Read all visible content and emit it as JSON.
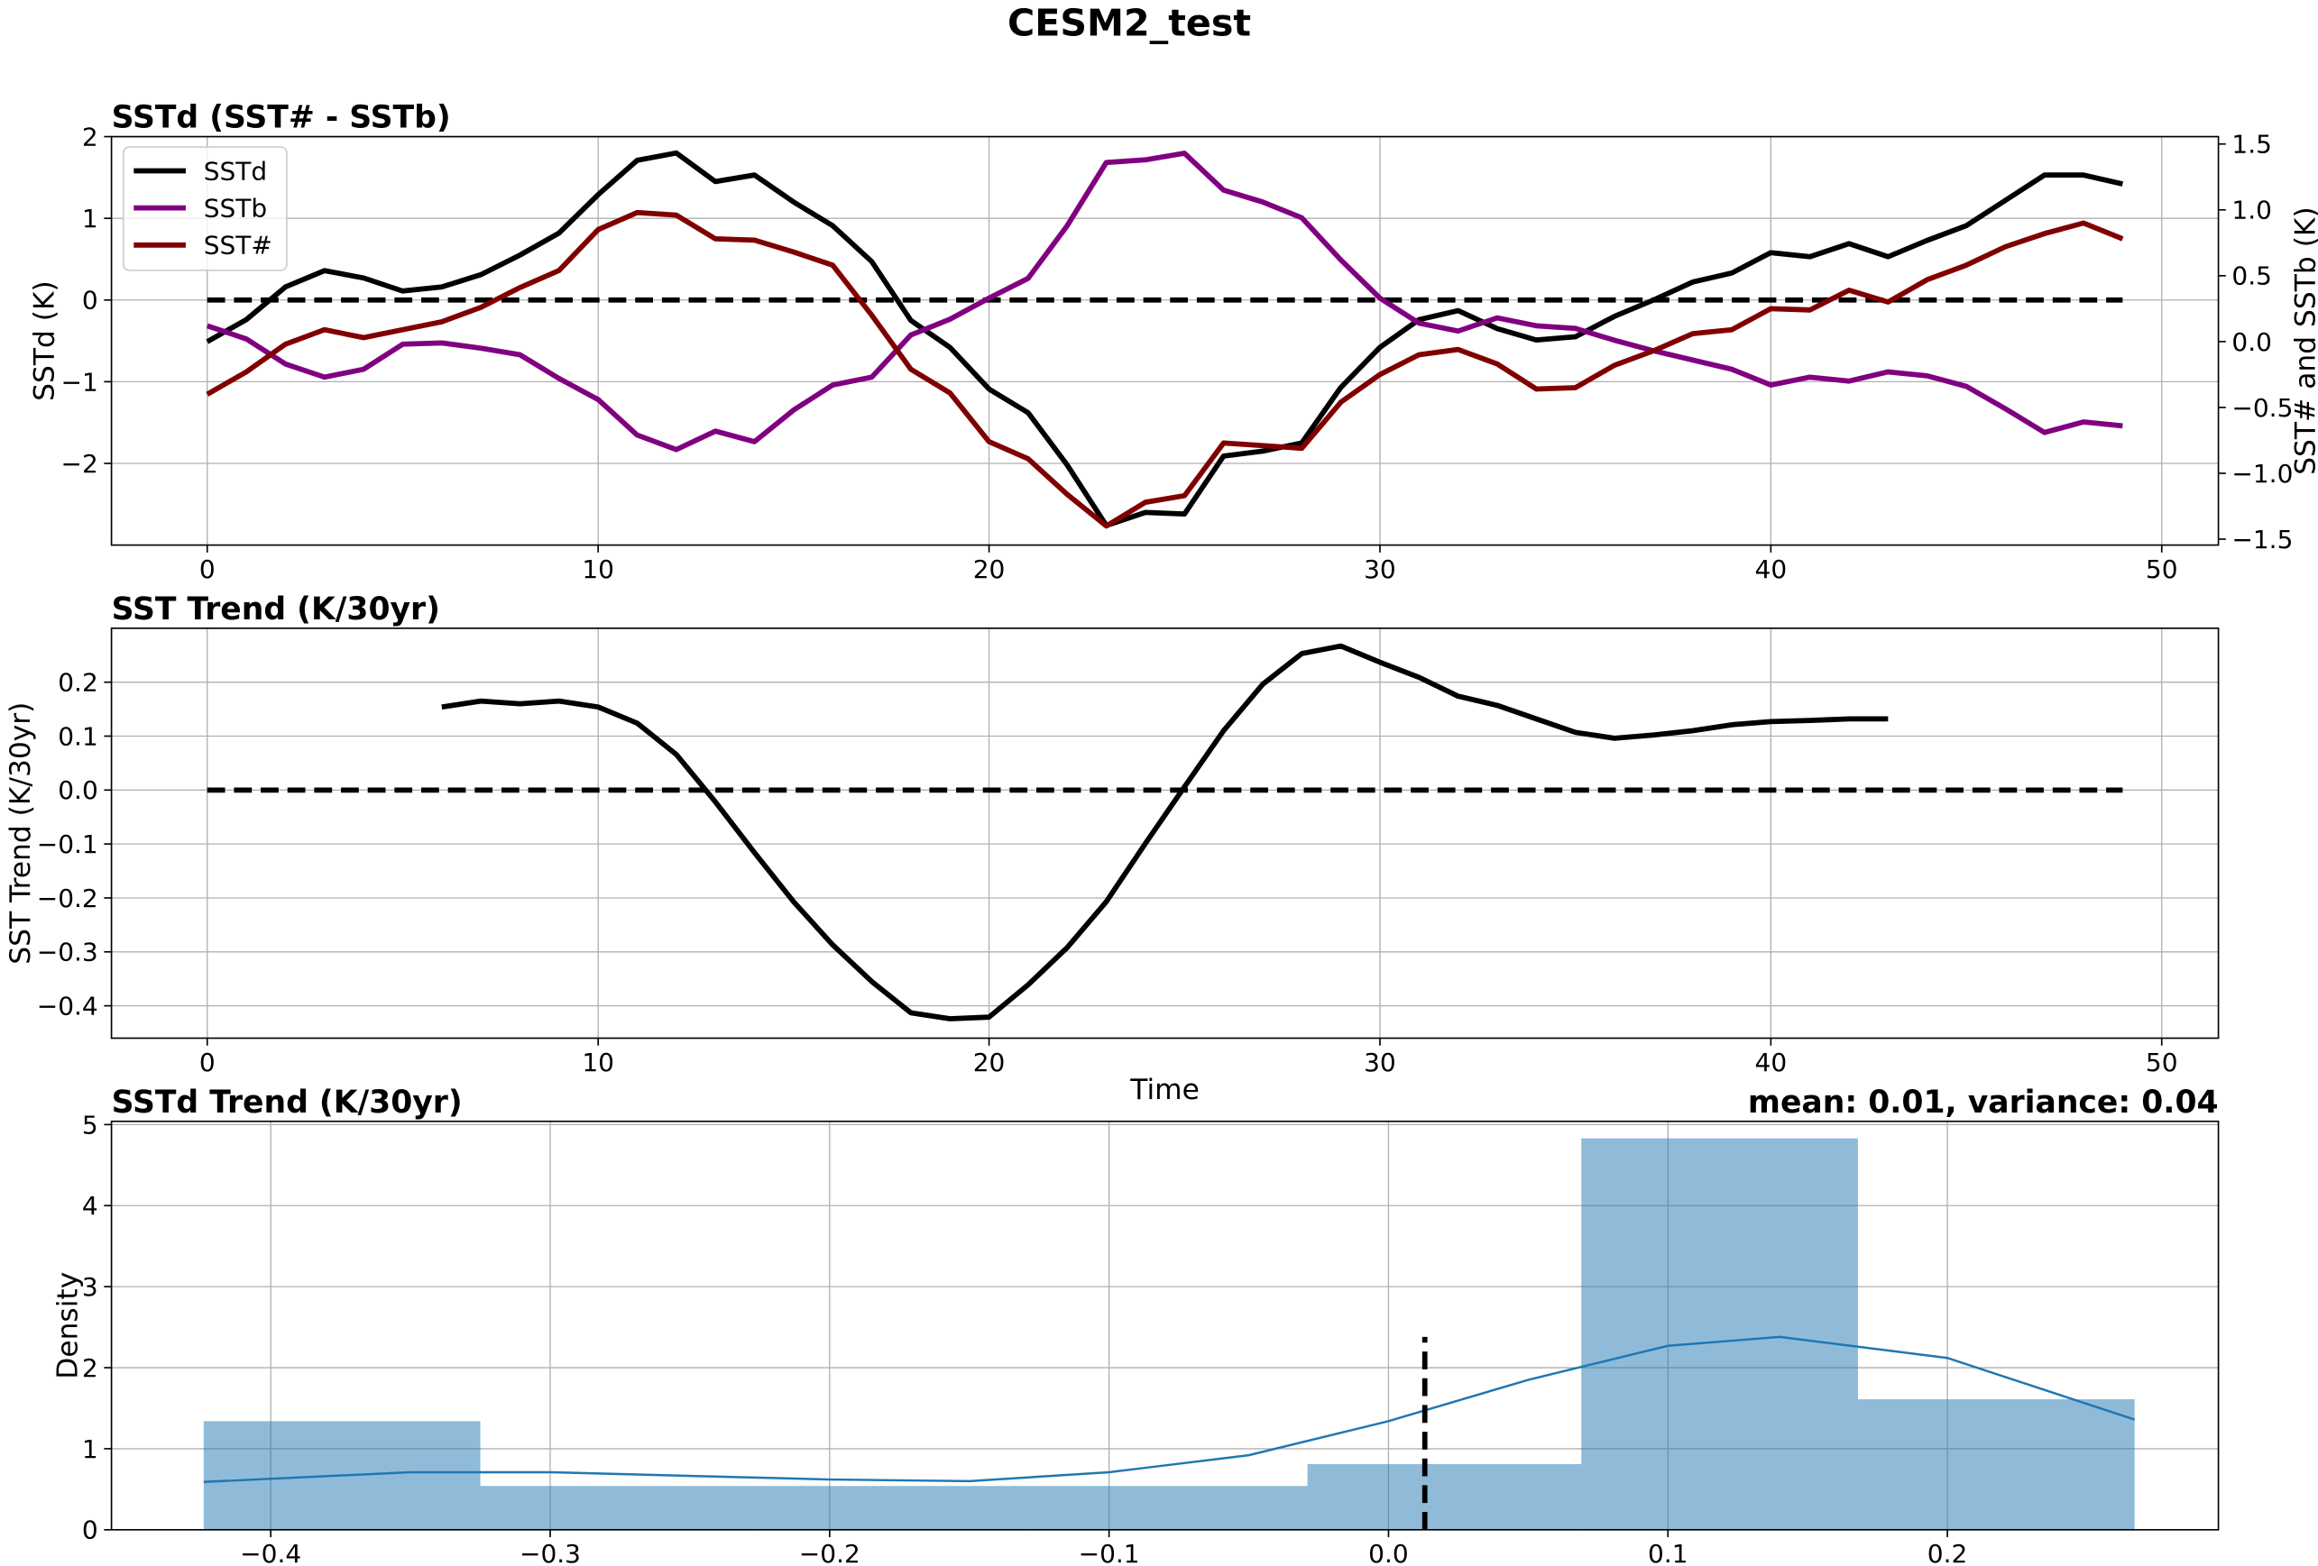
{
  "title": "CESM2_test",
  "chart_data": [
    {
      "type": "line",
      "title": "SSTd (SST# - SSTb)",
      "ylabel": "SSTd (K)",
      "y2label": "SST# and SSTb (K)",
      "x": [
        0,
        1,
        2,
        3,
        4,
        5,
        6,
        7,
        8,
        9,
        10,
        11,
        12,
        13,
        14,
        15,
        16,
        17,
        18,
        19,
        20,
        21,
        22,
        23,
        24,
        25,
        26,
        27,
        28,
        29,
        30,
        31,
        32,
        33,
        34,
        35,
        36,
        37,
        38,
        39,
        40,
        41,
        42,
        43,
        44,
        45,
        46,
        47,
        48,
        49
      ],
      "xlim": [
        -2.45,
        51.45
      ],
      "xticks": [
        0,
        10,
        20,
        30,
        40,
        50
      ],
      "ylim": [
        -3,
        2
      ],
      "yticks": [
        {
          "value": -2,
          "label": "−2"
        },
        {
          "value": -1,
          "label": "−1"
        },
        0,
        1,
        2
      ],
      "y2lim": [
        -1.545,
        1.556
      ],
      "y2ticks": [
        {
          "value": -1.5,
          "label": "−1.5"
        },
        {
          "value": -1,
          "label": "−1.0"
        },
        {
          "value": -0.5,
          "label": "−0.5"
        },
        {
          "value": 0,
          "label": "0.0"
        },
        0.5,
        {
          "value": 1,
          "label": "1.0"
        },
        1.5
      ],
      "grid": true,
      "legend": "upper left",
      "hline": 0,
      "series": [
        {
          "name": "SSTd",
          "color": "#000000",
          "axis": "y",
          "values": [
            -0.51,
            -0.24,
            0.16,
            0.36,
            0.27,
            0.11,
            0.16,
            0.31,
            0.55,
            0.82,
            1.29,
            1.71,
            1.8,
            1.45,
            1.53,
            1.2,
            0.91,
            0.47,
            -0.25,
            -0.58,
            -1.09,
            -1.38,
            -2.02,
            -2.76,
            -2.6,
            -2.62,
            -1.91,
            -1.85,
            -1.75,
            -1.07,
            -0.58,
            -0.24,
            -0.13,
            -0.35,
            -0.49,
            -0.45,
            -0.2,
            0,
            0.22,
            0.33,
            0.58,
            0.53,
            0.69,
            0.53,
            0.73,
            0.91,
            1.22,
            1.53,
            1.53,
            1.42
          ]
        },
        {
          "name": "SSTb",
          "color": "#800080",
          "axis": "y2",
          "values": [
            0.12,
            0.02,
            -0.17,
            -0.27,
            -0.21,
            -0.02,
            -0.01,
            -0.05,
            -0.1,
            -0.28,
            -0.44,
            -0.71,
            -0.82,
            -0.68,
            -0.76,
            -0.52,
            -0.33,
            -0.27,
            0.05,
            0.17,
            0.33,
            0.48,
            0.88,
            1.36,
            1.38,
            1.43,
            1.15,
            1.06,
            0.94,
            0.62,
            0.33,
            0.14,
            0.08,
            0.18,
            0.12,
            0.1,
            0.01,
            -0.07,
            -0.14,
            -0.21,
            -0.33,
            -0.27,
            -0.3,
            -0.23,
            -0.26,
            -0.34,
            -0.51,
            -0.69,
            -0.61,
            -0.64
          ]
        },
        {
          "name": "SST#",
          "color": "#800000",
          "axis": "y2",
          "values": [
            -0.4,
            -0.23,
            -0.02,
            0.09,
            0.03,
            0.09,
            0.15,
            0.26,
            0.41,
            0.54,
            0.85,
            0.98,
            0.96,
            0.78,
            0.77,
            0.68,
            0.58,
            0.2,
            -0.21,
            -0.39,
            -0.76,
            -0.89,
            -1.16,
            -1.4,
            -1.22,
            -1.17,
            -0.77,
            -0.79,
            -0.81,
            -0.46,
            -0.25,
            -0.1,
            -0.06,
            -0.17,
            -0.36,
            -0.35,
            -0.18,
            -0.07,
            0.06,
            0.09,
            0.25,
            0.24,
            0.39,
            0.3,
            0.47,
            0.58,
            0.72,
            0.82,
            0.9,
            0.78
          ]
        }
      ]
    },
    {
      "type": "line",
      "title": "SST Trend (K/30yr)",
      "ylabel": "SST Trend (K/30yr)",
      "xlabel": "Time",
      "x": [
        0,
        1,
        2,
        3,
        4,
        5,
        6,
        7,
        8,
        9,
        10,
        11,
        12,
        13,
        14,
        15,
        16,
        17,
        18,
        19,
        20,
        21,
        22,
        23,
        24,
        25,
        26,
        27,
        28,
        29,
        30,
        31,
        32,
        33,
        34,
        35,
        36,
        37,
        38,
        39,
        40,
        41,
        42,
        43,
        44,
        45,
        46,
        47,
        48,
        49
      ],
      "xlim": [
        -2.45,
        51.45
      ],
      "xticks": [
        0,
        10,
        20,
        30,
        40,
        50
      ],
      "ylim": [
        -0.46,
        0.3
      ],
      "yticks": [
        {
          "value": -0.4,
          "label": "−0.4"
        },
        {
          "value": -0.3,
          "label": "−0.3"
        },
        {
          "value": -0.2,
          "label": "−0.2"
        },
        {
          "value": -0.1,
          "label": "−0.1"
        },
        {
          "value": 0,
          "label": "0.0"
        },
        0.1,
        0.2
      ],
      "grid": true,
      "hline": 0,
      "series": [
        {
          "color": "#000000",
          "axis": "y",
          "values": [
            null,
            null,
            null,
            null,
            null,
            null,
            0.154,
            0.165,
            0.16,
            0.165,
            0.154,
            0.124,
            0.066,
            -0.022,
            -0.116,
            -0.207,
            -0.287,
            -0.355,
            -0.413,
            -0.424,
            -0.421,
            -0.361,
            -0.292,
            -0.207,
            -0.099,
            0.006,
            0.11,
            0.196,
            0.253,
            0.267,
            0.237,
            0.209,
            0.174,
            0.157,
            0.132,
            0.107,
            0.096,
            0.102,
            0.11,
            0.121,
            0.127,
            0.129,
            0.132,
            0.132,
            null,
            null,
            null,
            null,
            null,
            null
          ]
        }
      ]
    },
    {
      "type": "histogram",
      "title": "SSTd Trend (K/30yr)",
      "annotation": "mean: 0.01, variance: 0.04",
      "ylabel": "Density",
      "bins": [
        -0.424,
        -0.325,
        -0.227,
        -0.128,
        -0.029,
        0.069,
        0.168,
        0.267
      ],
      "values": [
        1.34,
        0.54,
        0.54,
        0.54,
        0.81,
        4.83,
        1.61
      ],
      "color": "#1f77b4",
      "kde": {
        "x": [
          -0.424,
          -0.35,
          -0.3,
          -0.2,
          -0.15,
          -0.1,
          -0.05,
          0,
          0.05,
          0.1,
          0.14,
          0.2,
          0.267
        ],
        "y": [
          0.59,
          0.71,
          0.71,
          0.62,
          0.6,
          0.71,
          0.92,
          1.34,
          1.85,
          2.27,
          2.38,
          2.12,
          1.36
        ]
      },
      "vline": {
        "x": 0.013,
        "height": 2.38
      },
      "xlim": [
        -0.457,
        0.297
      ],
      "xticks": [
        {
          "value": -0.4,
          "label": "−0.4"
        },
        {
          "value": -0.3,
          "label": "−0.3"
        },
        {
          "value": -0.2,
          "label": "−0.2"
        },
        {
          "value": -0.1,
          "label": "−0.1"
        },
        {
          "value": 0,
          "label": "0.0"
        },
        0.1,
        0.2
      ],
      "ylim": [
        0,
        5.04
      ],
      "yticks": [
        0,
        1,
        2,
        3,
        4,
        5
      ],
      "grid": true
    }
  ]
}
